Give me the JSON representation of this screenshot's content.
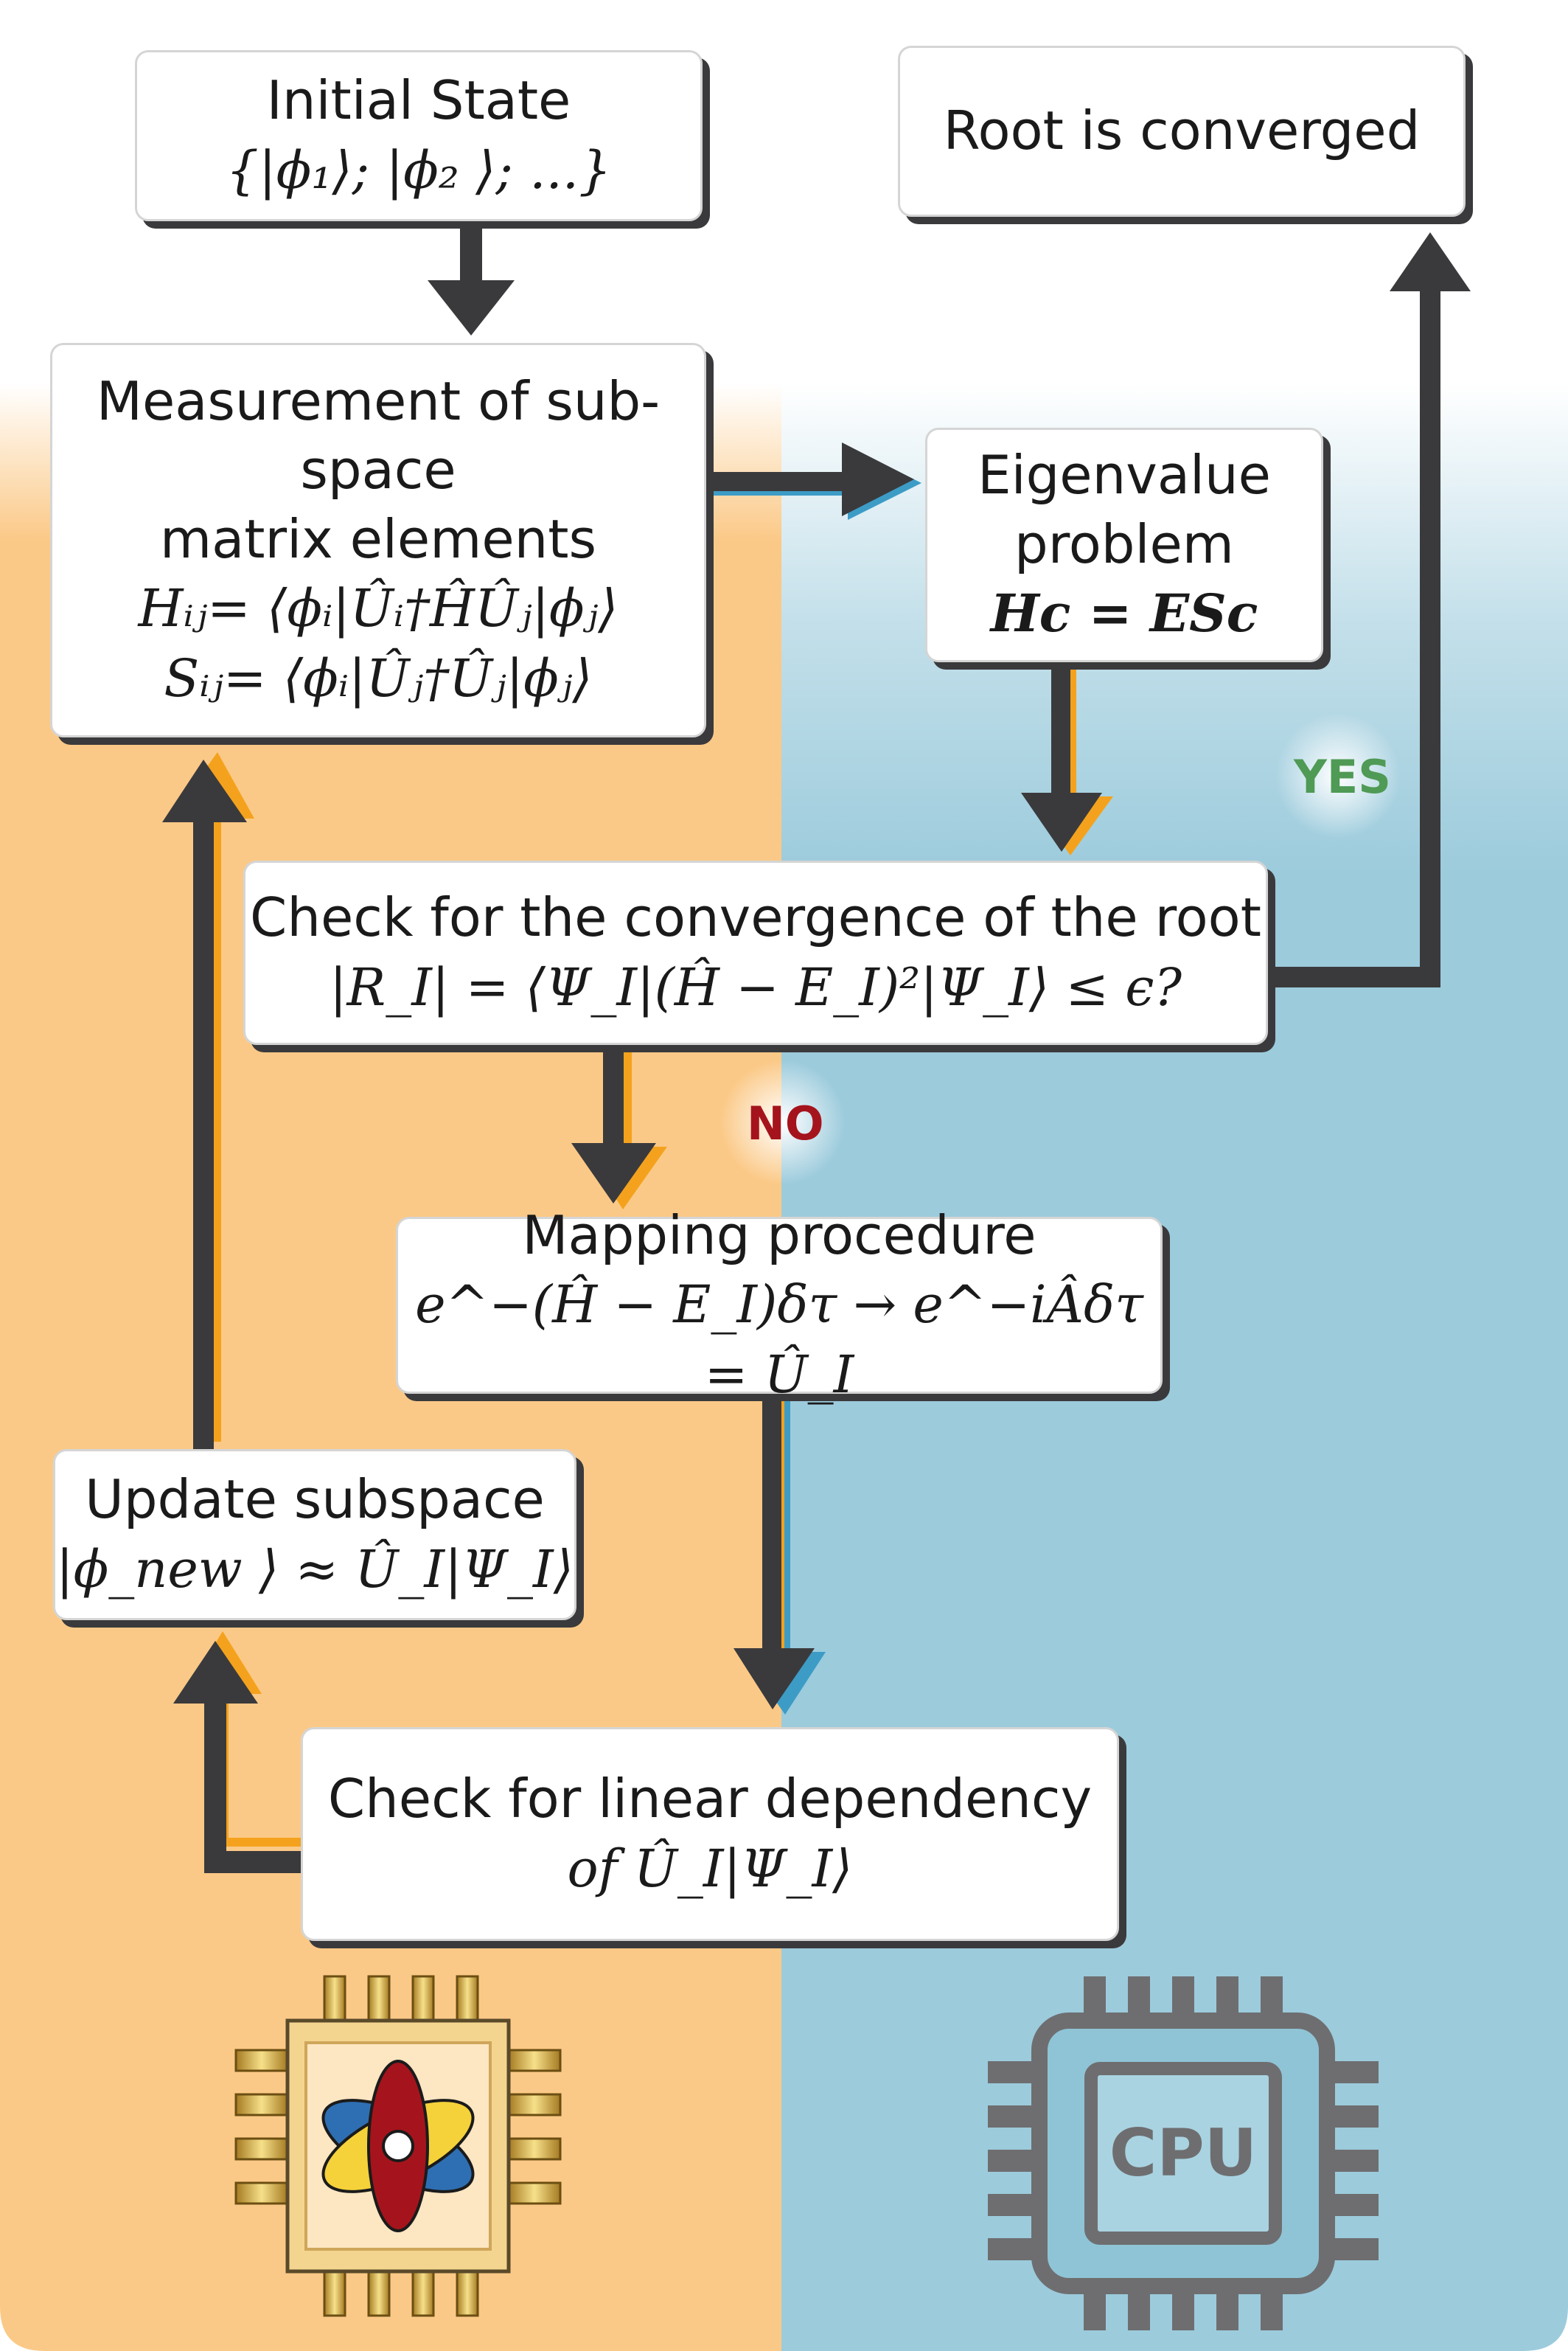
{
  "colors": {
    "quantum_bg": "#fbc987",
    "cpu_bg": "#9ccbdc",
    "arrow": "#3a3a3c",
    "accent_orange": "#f4a21d",
    "accent_blue": "#3d9cc6",
    "yes_green": "#4f9a55",
    "no_red": "#a5141c"
  },
  "nodes": {
    "initial_state": {
      "line1": "Initial State",
      "line2": "{|ϕ₁⟩; |ϕ₂ ⟩; ...}"
    },
    "root_converged": {
      "line1": "Root is converged"
    },
    "measurement": {
      "line1": "Measurement of sub-",
      "line2": "space",
      "line3": "matrix elements",
      "eq_h": "Hᵢⱼ= ⟨ϕᵢ|Ûᵢ†ĤÛⱼ|ϕⱼ⟩",
      "eq_s": "Sᵢⱼ= ⟨ϕᵢ|Ûⱼ†Ûⱼ|ϕⱼ⟩"
    },
    "eigenvalue": {
      "line1": "Eigenvalue",
      "line2": "problem",
      "eq": "Hc = ESc"
    },
    "convergence": {
      "line1": "Check for the convergence of the root",
      "eq": "|R_I| = ⟨Ψ_I|(Ĥ − E_I)²|Ψ_I⟩ ≤ ϵ?"
    },
    "mapping": {
      "line1": "Mapping procedure",
      "eq": "e^−(Ĥ − E_I)δτ → e^−iÂδτ = Û_I"
    },
    "update": {
      "line1": "Update subspace",
      "eq": "|ϕ_new ⟩ ≈ Û_I|Ψ_I⟩"
    },
    "linear_dep": {
      "line1": "Check for linear dependency",
      "line2": "of  Û_I|Ψ_I⟩"
    }
  },
  "decisions": {
    "yes": "YES",
    "no": "NO"
  },
  "icons": {
    "quantum": "quantum-chip-icon",
    "cpu": "cpu-chip-icon",
    "cpu_label": "CPU"
  }
}
